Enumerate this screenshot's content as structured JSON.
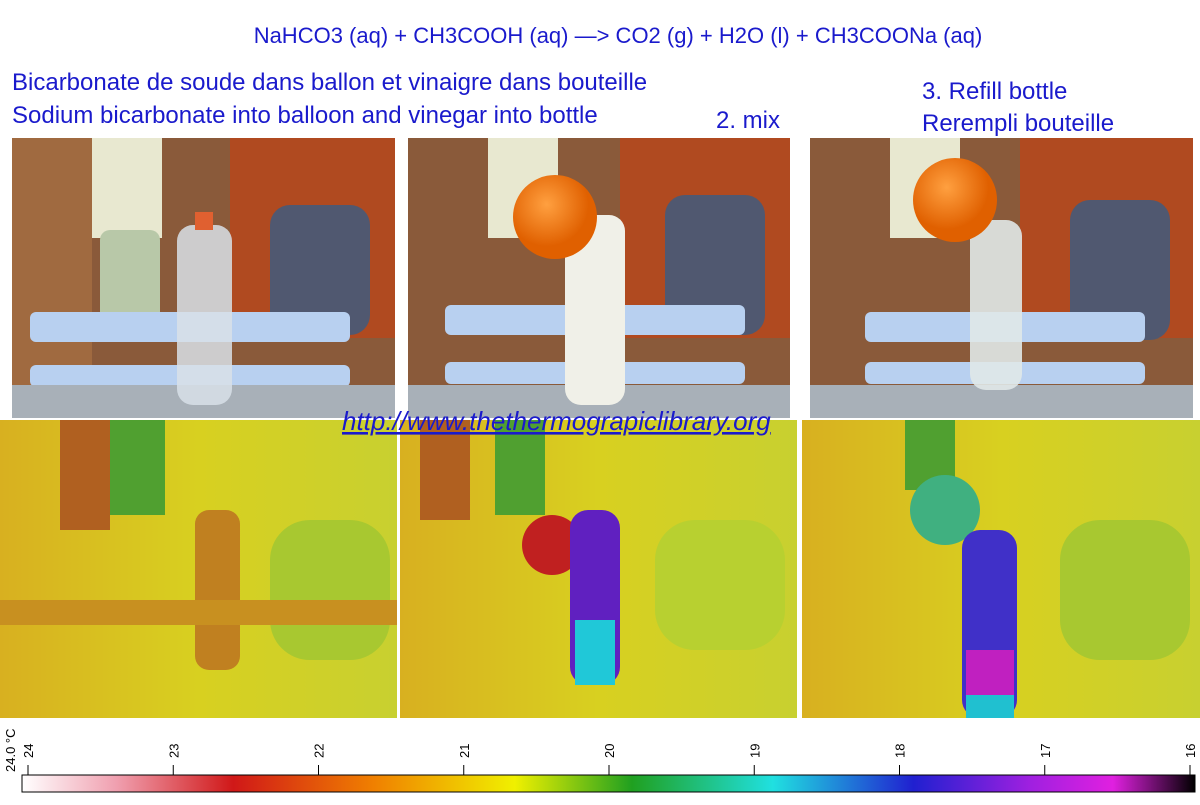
{
  "title": "NaHCO3 (aq) + CH3COOH (aq) —> CO2 (g) + H2O (l) + CH3COONa (aq)",
  "captions": {
    "step1_fr": "Bicarbonate de soude dans ballon et vinaigre dans bouteille",
    "step1_en": "Sodium bicarbonate into balloon and vinegar into bottle",
    "step2": "2. mix",
    "step3_en": "3. Refill bottle",
    "step3_fr": "Rerempli bouteille"
  },
  "url": "http://www.thethermograpiclibrary.org",
  "scale": {
    "unit_label": "24.0 °C",
    "ticks": [
      24,
      23,
      22,
      21,
      20,
      19,
      18,
      17,
      16
    ]
  }
}
